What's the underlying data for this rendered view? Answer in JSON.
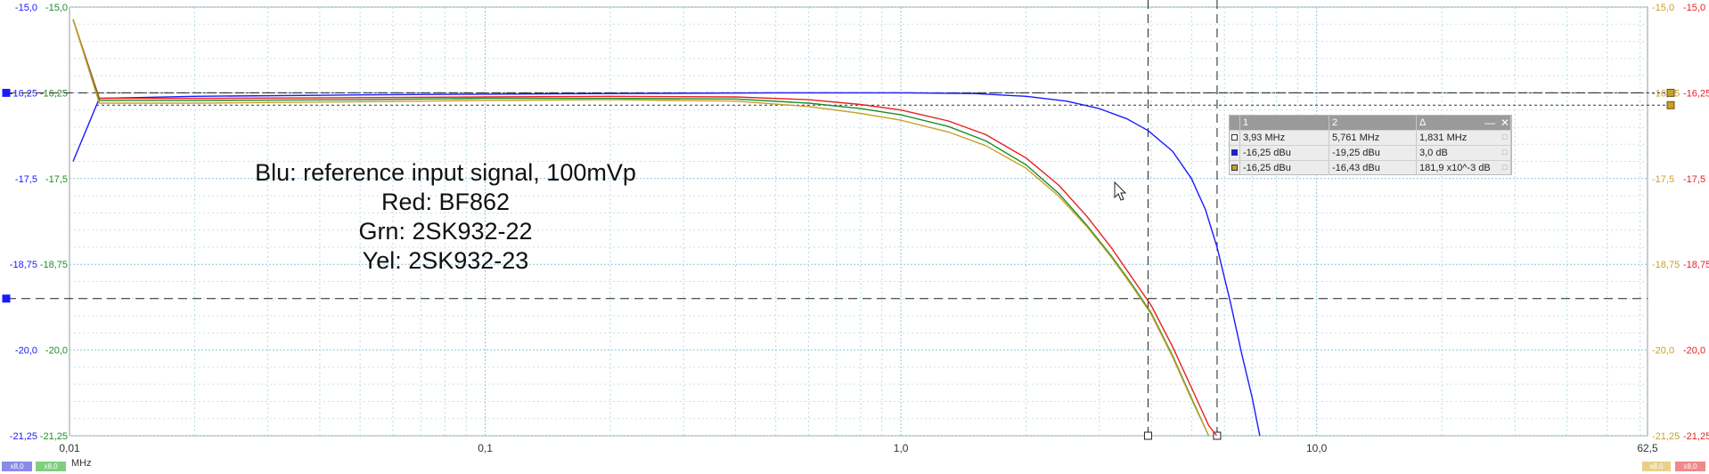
{
  "chart_data": {
    "type": "line",
    "xscale": "log",
    "xlim": [
      0.01,
      62.5
    ],
    "ylim": [
      -21.25,
      -15.0
    ],
    "x_ticks": [
      {
        "value": 0.01,
        "label": "0,01"
      },
      {
        "value": 0.1,
        "label": "0,1"
      },
      {
        "value": 1.0,
        "label": "1,0"
      },
      {
        "value": 10.0,
        "label": "10,0"
      },
      {
        "value": 62.5,
        "label": "62,5"
      }
    ],
    "x_unit": "MHz",
    "y_ticks": [
      {
        "value": -15.0,
        "label": "-15,0"
      },
      {
        "value": -16.25,
        "label": "-16,25"
      },
      {
        "value": -17.5,
        "label": "-17,5"
      },
      {
        "value": -18.75,
        "label": "-18,75"
      },
      {
        "value": -20.0,
        "label": "-20,0"
      },
      {
        "value": -21.25,
        "label": "-21,25"
      }
    ],
    "grid": true,
    "series": [
      {
        "color": "#1a1aff",
        "points": [
          [
            0.0102,
            -17.25
          ],
          [
            0.0118,
            -16.33
          ],
          [
            0.02,
            -16.3
          ],
          [
            0.05,
            -16.28
          ],
          [
            0.1,
            -16.27
          ],
          [
            0.2,
            -16.26
          ],
          [
            0.5,
            -16.25
          ],
          [
            1.0,
            -16.25
          ],
          [
            1.5,
            -16.26
          ],
          [
            2.0,
            -16.3
          ],
          [
            2.5,
            -16.37
          ],
          [
            3.0,
            -16.48
          ],
          [
            3.5,
            -16.63
          ],
          [
            3.93,
            -16.8
          ],
          [
            4.5,
            -17.1
          ],
          [
            5.0,
            -17.5
          ],
          [
            5.4,
            -17.95
          ],
          [
            5.761,
            -18.5
          ],
          [
            6.2,
            -19.3
          ],
          [
            6.6,
            -20.05
          ],
          [
            7.0,
            -20.7
          ],
          [
            7.3,
            -21.25
          ]
        ]
      },
      {
        "color": "#e82020",
        "points": [
          [
            0.0102,
            -15.18
          ],
          [
            0.0118,
            -16.33
          ],
          [
            0.02,
            -16.33
          ],
          [
            0.05,
            -16.32
          ],
          [
            0.1,
            -16.31
          ],
          [
            0.2,
            -16.3
          ],
          [
            0.4,
            -16.31
          ],
          [
            0.6,
            -16.35
          ],
          [
            0.8,
            -16.42
          ],
          [
            1.0,
            -16.5
          ],
          [
            1.3,
            -16.66
          ],
          [
            1.6,
            -16.86
          ],
          [
            2.0,
            -17.2
          ],
          [
            2.4,
            -17.6
          ],
          [
            2.8,
            -18.05
          ],
          [
            3.2,
            -18.5
          ],
          [
            3.6,
            -18.95
          ],
          [
            4.0,
            -19.35
          ],
          [
            4.5,
            -19.95
          ],
          [
            5.0,
            -20.55
          ],
          [
            5.5,
            -21.1
          ],
          [
            5.75,
            -21.25
          ]
        ]
      },
      {
        "color": "#1e8c2a",
        "points": [
          [
            0.0102,
            -15.18
          ],
          [
            0.0118,
            -16.36
          ],
          [
            0.02,
            -16.36
          ],
          [
            0.05,
            -16.35
          ],
          [
            0.1,
            -16.33
          ],
          [
            0.2,
            -16.33
          ],
          [
            0.4,
            -16.34
          ],
          [
            0.6,
            -16.4
          ],
          [
            0.8,
            -16.48
          ],
          [
            1.0,
            -16.57
          ],
          [
            1.3,
            -16.74
          ],
          [
            1.6,
            -16.95
          ],
          [
            2.0,
            -17.3
          ],
          [
            2.4,
            -17.72
          ],
          [
            2.8,
            -18.18
          ],
          [
            3.2,
            -18.62
          ],
          [
            3.6,
            -19.05
          ],
          [
            4.0,
            -19.46
          ],
          [
            4.5,
            -20.08
          ],
          [
            5.0,
            -20.7
          ],
          [
            5.5,
            -21.25
          ]
        ]
      },
      {
        "color": "#c8a02a",
        "points": [
          [
            0.0102,
            -15.18
          ],
          [
            0.0118,
            -16.4
          ],
          [
            0.02,
            -16.4
          ],
          [
            0.05,
            -16.38
          ],
          [
            0.1,
            -16.36
          ],
          [
            0.2,
            -16.35
          ],
          [
            0.4,
            -16.37
          ],
          [
            0.6,
            -16.45
          ],
          [
            0.8,
            -16.55
          ],
          [
            1.0,
            -16.65
          ],
          [
            1.3,
            -16.82
          ],
          [
            1.6,
            -17.02
          ],
          [
            2.0,
            -17.35
          ],
          [
            2.4,
            -17.76
          ],
          [
            2.8,
            -18.2
          ],
          [
            3.2,
            -18.64
          ],
          [
            3.6,
            -19.07
          ],
          [
            4.0,
            -19.48
          ],
          [
            4.5,
            -20.1
          ],
          [
            5.0,
            -20.72
          ],
          [
            5.5,
            -21.25
          ]
        ]
      }
    ],
    "cursors": {
      "x": [
        3.93,
        5.761
      ],
      "y": [
        -16.25,
        -19.25
      ],
      "y_yellow": [
        -16.25,
        -16.43
      ]
    },
    "annotations": [
      "Blu: reference input signal, 100mVp",
      "Red: BF862",
      "Grn: 2SK932-22",
      "Yel: 2SK932-23"
    ]
  },
  "cursor_table": {
    "headers": [
      "1",
      "2",
      "Δ"
    ],
    "rows": [
      {
        "swatch": "#ffffff",
        "c1": "3,93 MHz",
        "c2": "5,761 MHz",
        "c3": "1,831 MHz"
      },
      {
        "swatch": "#1a1aff",
        "c1": "-16,25 dBu",
        "c2": "-19,25 dBu",
        "c3": "3,0 dB"
      },
      {
        "swatch": "#c8a02a",
        "c1": "-16,25 dBu",
        "c2": "-16,43 dBu",
        "c3": "181,9 x10^-3 dB"
      }
    ]
  },
  "status": {
    "unit": "MHz",
    "left_chips": [
      {
        "label": "x8,0",
        "color": "#8a8ae8"
      },
      {
        "label": "x8,0",
        "color": "#7fcf7f"
      }
    ],
    "right_chips": [
      {
        "label": "x8,0",
        "color": "#e8d08a"
      },
      {
        "label": "x8,0",
        "color": "#ee8a8a"
      }
    ]
  }
}
